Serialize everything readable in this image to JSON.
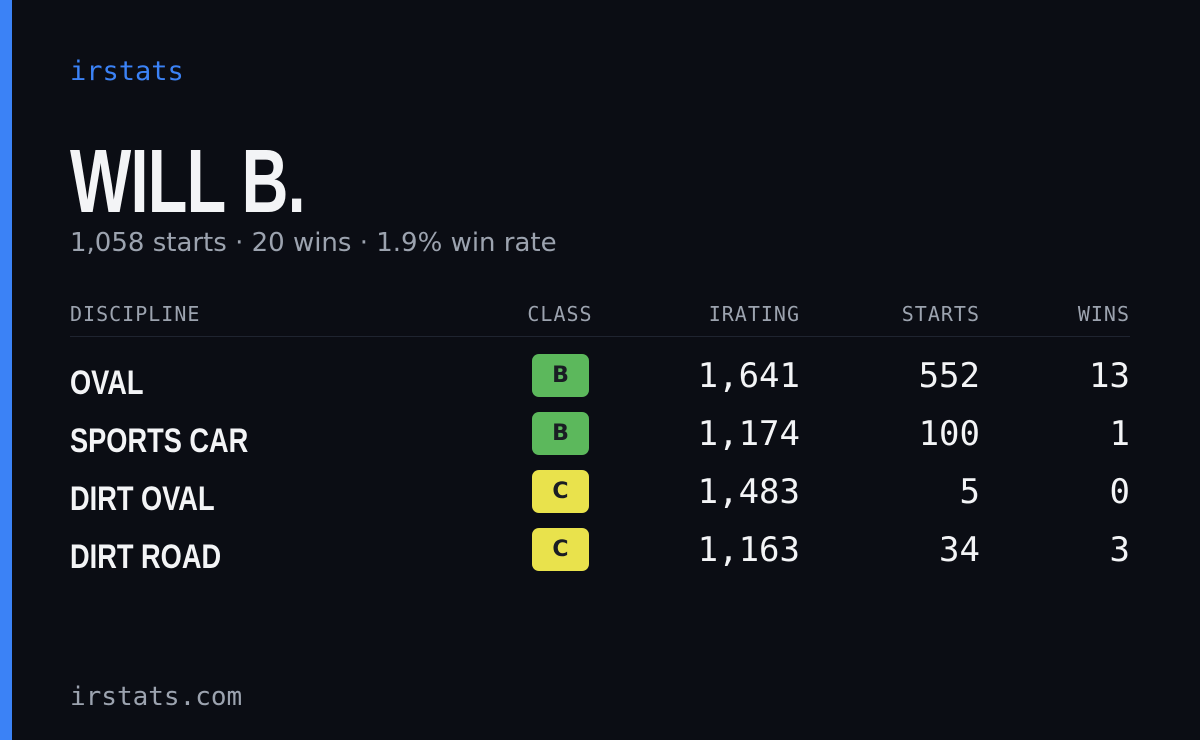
{
  "brand": "irstats",
  "driver": {
    "name": "WILL B.",
    "summary": "1,058 starts · 20 wins · 1.9% win rate"
  },
  "table": {
    "headers": [
      "DISCIPLINE",
      "CLASS",
      "IRATING",
      "STARTS",
      "WINS"
    ],
    "rows": [
      [
        "OVAL",
        "B",
        "1,641",
        "552",
        "13"
      ],
      [
        "SPORTS CAR",
        "B",
        "1,174",
        "100",
        "1"
      ],
      [
        "DIRT OVAL",
        "C",
        "1,483",
        "5",
        "0"
      ],
      [
        "DIRT ROAD",
        "C",
        "1,163",
        "34",
        "3"
      ]
    ],
    "class_colors": {
      "B": "#5cb85c",
      "C": "#e9e24c"
    }
  },
  "footer": "irstats.com"
}
